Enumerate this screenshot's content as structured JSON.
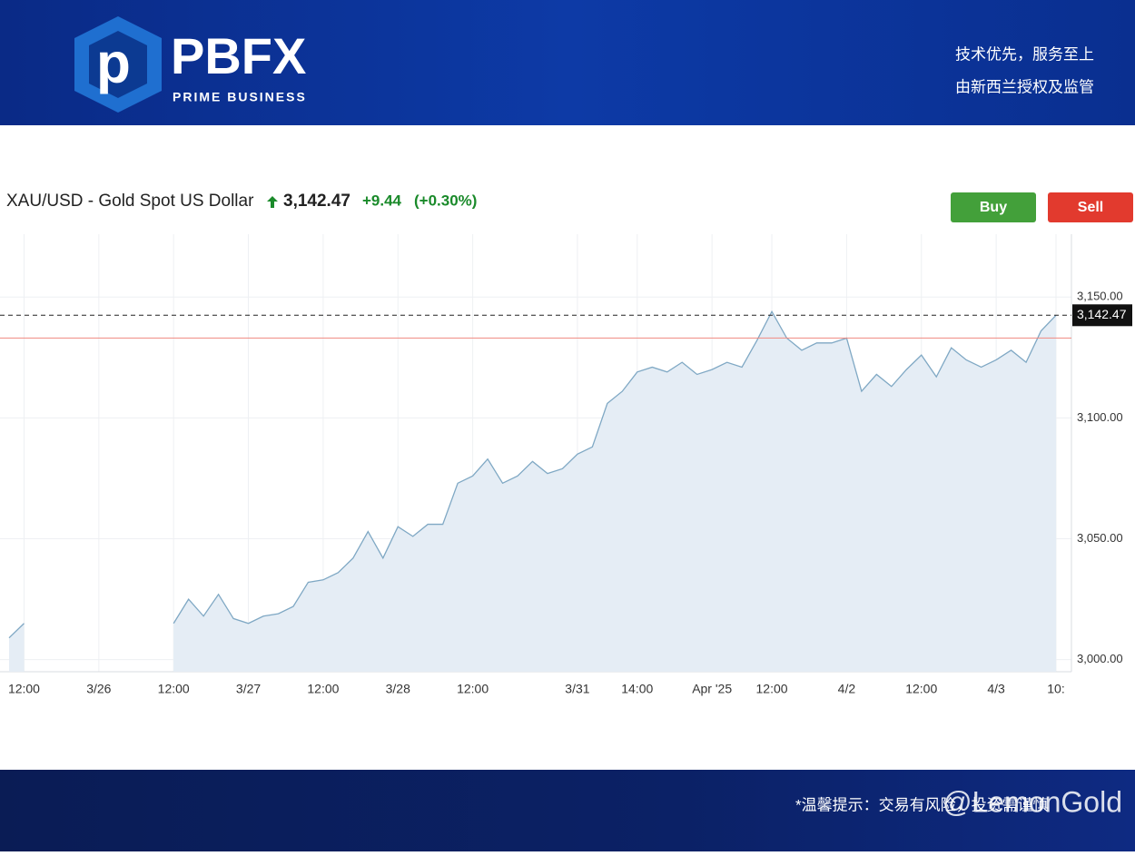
{
  "header": {
    "brand": "PBFX",
    "brand_sub": "PRIME BUSINESS",
    "slogan_1": "技术优先，服务至上",
    "slogan_2": "由新西兰授权及监管"
  },
  "quote": {
    "symbol": "XAU/USD - Gold Spot US Dollar",
    "price": "3,142.47",
    "change": "+9.44",
    "change_pct": "(+0.30%)"
  },
  "buttons": {
    "buy": "Buy",
    "sell": "Sell"
  },
  "chart_data": {
    "type": "line",
    "color": "#7fa8c4",
    "fill": "#e5edf5",
    "grid": true,
    "categories": [
      null,
      "12:00",
      null,
      null,
      null,
      null,
      "3/26",
      null,
      null,
      null,
      null,
      "12:00",
      null,
      null,
      null,
      null,
      "3/27",
      null,
      null,
      null,
      null,
      "12:00",
      null,
      null,
      null,
      null,
      "3/28",
      null,
      null,
      null,
      null,
      "12:00",
      null,
      null,
      null,
      null,
      null,
      null,
      "3/31",
      null,
      null,
      null,
      "14:00",
      null,
      null,
      null,
      null,
      "Apr '25",
      null,
      null,
      null,
      "12:00",
      null,
      null,
      null,
      null,
      "4/2",
      null,
      null,
      null,
      null,
      "12:00",
      null,
      null,
      null,
      null,
      "4/3",
      null,
      null,
      null,
      "10:"
    ],
    "values": [
      3009,
      3015,
      null,
      null,
      null,
      null,
      null,
      null,
      null,
      null,
      null,
      3015,
      3025,
      3018,
      3027,
      3017,
      3015,
      3018,
      3019,
      3022,
      3032,
      3033,
      3036,
      3042,
      3053,
      3042,
      3055,
      3051,
      3056,
      3056,
      3073,
      3076,
      3083,
      3073,
      3076,
      3082,
      3077,
      3079,
      3085,
      3088,
      3106,
      3111,
      3119,
      3121,
      3119,
      3123,
      3118,
      3120,
      3123,
      3121,
      3132,
      3144,
      3133,
      3128,
      3131,
      3131,
      3133,
      3111,
      3118,
      3113,
      3120,
      3126,
      3117,
      3129,
      3124,
      3121,
      3124,
      3128,
      3123,
      3136,
      3142.47
    ],
    "ylim": [
      2995,
      3176
    ],
    "yticks": [
      {
        "value": 3000,
        "label": "3,000.00"
      },
      {
        "value": 3050,
        "label": "3,050.00"
      },
      {
        "value": 3100,
        "label": "3,100.00"
      },
      {
        "value": 3150,
        "label": "3,150.00"
      }
    ],
    "last": {
      "value": 3142.47,
      "label": "3,142.47"
    },
    "reference_line": 3133.03
  },
  "footer": {
    "notice": "*温馨提示：交易有风险，投资需谨慎",
    "watermark": "@LemonGold"
  }
}
